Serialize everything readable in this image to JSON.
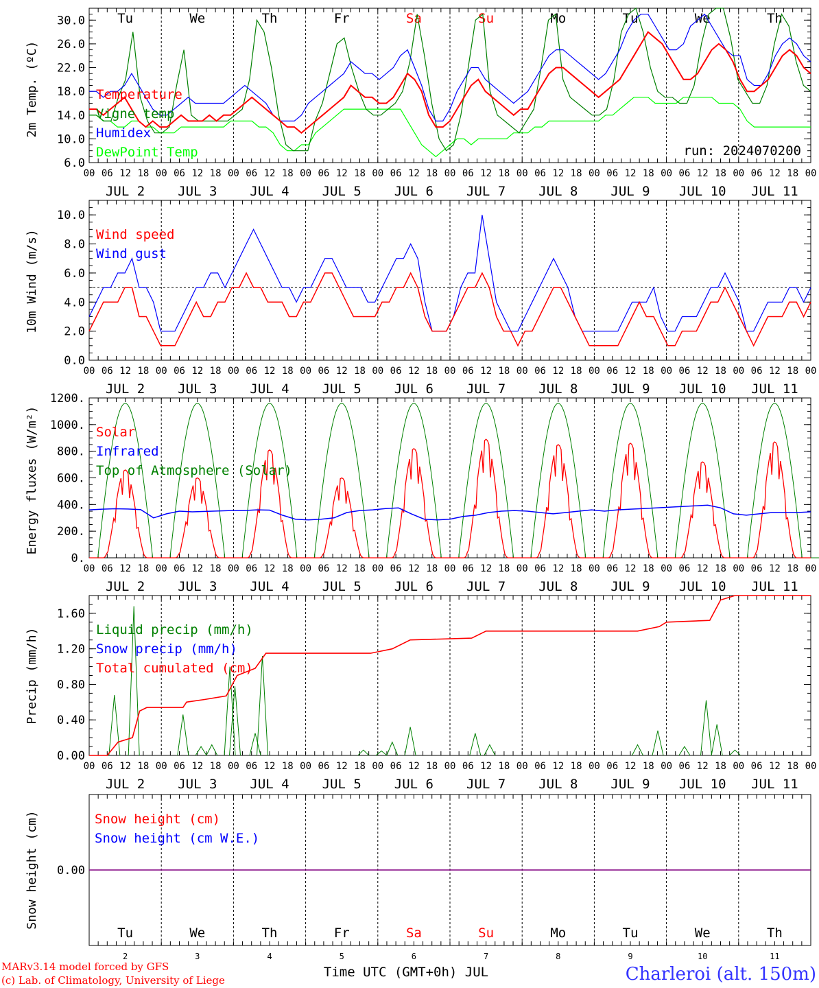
{
  "chart_data": [
    {
      "type": "line",
      "ylabel": "2m Temp. (ºC)",
      "ylim": [
        6,
        32
      ],
      "yticks": [
        "6.0",
        "10.0",
        "14.0",
        "18.0",
        "22.0",
        "26.0",
        "30.0"
      ],
      "run_label": "run: 2024070200",
      "day_names": [
        "Tu",
        "We",
        "Th",
        "Fr",
        "Sa",
        "Su",
        "Mo",
        "Tu",
        "We",
        "Th"
      ],
      "series": [
        {
          "name": "Temperature",
          "color": "#ff0000",
          "values": [
            15,
            15,
            14,
            15,
            16,
            17,
            15,
            13,
            12,
            13,
            12,
            12,
            13,
            14,
            13,
            13,
            13,
            14,
            13,
            14,
            14,
            15,
            16,
            17,
            16,
            15,
            14,
            13,
            12,
            12,
            11,
            12,
            13,
            14,
            15,
            16,
            17,
            19,
            18,
            17,
            17,
            16,
            16,
            17,
            19,
            21,
            20,
            18,
            14,
            12,
            12,
            13,
            15,
            17,
            19,
            20,
            18,
            17,
            16,
            15,
            14,
            15,
            15,
            17,
            19,
            21,
            22,
            22,
            21,
            20,
            19,
            18,
            17,
            18,
            19,
            20,
            22,
            24,
            26,
            28,
            27,
            26,
            24,
            22,
            20,
            20,
            21,
            23,
            25,
            26,
            25,
            23,
            20,
            18,
            18,
            19,
            20,
            22,
            24,
            25,
            24,
            22,
            21
          ]
        },
        {
          "name": "Vigne temp",
          "color": "#008000",
          "values": [
            14,
            14,
            13,
            13,
            17,
            20,
            28,
            17,
            13,
            11,
            11,
            12,
            19,
            25,
            14,
            13,
            13,
            13,
            13,
            13,
            14,
            15,
            20,
            30,
            28,
            22,
            14,
            9,
            8,
            8,
            8,
            13,
            16,
            21,
            26,
            27,
            22,
            18,
            15,
            14,
            14,
            15,
            16,
            18,
            23,
            31,
            24,
            16,
            10,
            8,
            9,
            14,
            22,
            30,
            31,
            18,
            14,
            13,
            12,
            11,
            13,
            15,
            22,
            30,
            31,
            20,
            17,
            16,
            15,
            14,
            14,
            15,
            20,
            28,
            31,
            33,
            28,
            22,
            18,
            17,
            17,
            16,
            16,
            19,
            26,
            31,
            33,
            32,
            27,
            20,
            18,
            16,
            16,
            19,
            26,
            31,
            29,
            23,
            19,
            18
          ]
        },
        {
          "name": "Humidex",
          "color": "#0000ff",
          "values": [
            18,
            18,
            17,
            18,
            18,
            19,
            21,
            19,
            17,
            15,
            14,
            14,
            15,
            16,
            17,
            16,
            16,
            16,
            16,
            16,
            17,
            18,
            19,
            18,
            17,
            16,
            14,
            13,
            13,
            13,
            14,
            16,
            17,
            18,
            19,
            20,
            21,
            23,
            22,
            21,
            21,
            20,
            21,
            22,
            24,
            25,
            22,
            19,
            15,
            13,
            13,
            15,
            18,
            20,
            22,
            22,
            20,
            19,
            18,
            17,
            16,
            17,
            18,
            20,
            22,
            24,
            25,
            25,
            24,
            23,
            22,
            21,
            20,
            21,
            23,
            25,
            28,
            30,
            31,
            31,
            29,
            27,
            25,
            25,
            26,
            29,
            30,
            31,
            29,
            27,
            25,
            24,
            24,
            20,
            19,
            19,
            21,
            24,
            26,
            27,
            26,
            24,
            23
          ]
        },
        {
          "name": "DewPoint Temp",
          "color": "#00ff00",
          "values": [
            14,
            14,
            13,
            13,
            12,
            12,
            13,
            13,
            12,
            12,
            11,
            11,
            11,
            12,
            12,
            12,
            12,
            12,
            12,
            12,
            13,
            13,
            13,
            13,
            12,
            12,
            11,
            9,
            8,
            8,
            9,
            9,
            11,
            12,
            13,
            14,
            15,
            15,
            15,
            15,
            15,
            15,
            15,
            15,
            15,
            13,
            11,
            9,
            8,
            7,
            8,
            9,
            10,
            10,
            9,
            10,
            10,
            10,
            10,
            10,
            11,
            11,
            11,
            12,
            12,
            13,
            13,
            13,
            13,
            13,
            13,
            13,
            13,
            14,
            14,
            15,
            16,
            17,
            17,
            17,
            16,
            16,
            16,
            16,
            17,
            17,
            17,
            17,
            17,
            16,
            16,
            16,
            15,
            13,
            12,
            12,
            12,
            12,
            12,
            12,
            12,
            12,
            12
          ]
        }
      ]
    },
    {
      "type": "line",
      "ylabel": "10m Wind (m/s)",
      "ylim": [
        0,
        11
      ],
      "yticks": [
        "0.0",
        "2.0",
        "4.0",
        "6.0",
        "8.0",
        "10.0"
      ],
      "reference_line": 5,
      "series": [
        {
          "name": "Wind speed",
          "color": "#ff0000",
          "values": [
            2,
            3,
            4,
            4,
            4,
            5,
            5,
            3,
            3,
            2,
            1,
            1,
            1,
            2,
            3,
            4,
            3,
            3,
            4,
            4,
            5,
            5,
            6,
            5,
            5,
            4,
            4,
            4,
            3,
            3,
            4,
            4,
            5,
            6,
            6,
            5,
            4,
            3,
            3,
            3,
            3,
            4,
            4,
            5,
            5,
            6,
            5,
            3,
            2,
            2,
            2,
            3,
            4,
            5,
            5,
            6,
            5,
            3,
            2,
            2,
            1,
            2,
            2,
            3,
            4,
            5,
            5,
            4,
            3,
            2,
            1,
            1,
            1,
            1,
            1,
            2,
            3,
            4,
            3,
            3,
            2,
            1,
            1,
            2,
            2,
            2,
            3,
            4,
            4,
            5,
            4,
            3,
            2,
            1,
            2,
            3,
            3,
            3,
            4,
            4,
            3,
            4
          ]
        },
        {
          "name": "Wind gust",
          "color": "#0000ff",
          "values": [
            3,
            4,
            5,
            5,
            6,
            6,
            7,
            5,
            5,
            4,
            2,
            2,
            2,
            3,
            4,
            5,
            5,
            6,
            6,
            5,
            6,
            7,
            8,
            9,
            8,
            7,
            6,
            5,
            5,
            4,
            5,
            5,
            6,
            7,
            7,
            6,
            5,
            5,
            5,
            4,
            4,
            5,
            6,
            7,
            7,
            8,
            7,
            4,
            2,
            2,
            2,
            3,
            5,
            6,
            6,
            10,
            7,
            4,
            3,
            2,
            2,
            3,
            4,
            5,
            6,
            7,
            6,
            5,
            3,
            2,
            2,
            2,
            2,
            2,
            2,
            3,
            4,
            4,
            4,
            5,
            3,
            2,
            2,
            3,
            3,
            3,
            4,
            5,
            5,
            6,
            5,
            4,
            2,
            2,
            3,
            4,
            4,
            4,
            5,
            5,
            4,
            5
          ]
        }
      ]
    },
    {
      "type": "line",
      "ylabel": "Energy fluxes (W/m²)",
      "ylim": [
        0,
        1200
      ],
      "yticks": [
        "0.",
        "200.",
        "400.",
        "600.",
        "800.",
        "1000.",
        "1200."
      ],
      "series": [
        {
          "name": "Solar",
          "color": "#ff0000",
          "peaks": [
            660,
            600,
            810,
            600,
            820,
            890,
            850,
            860,
            720,
            870
          ]
        },
        {
          "name": "Infrared",
          "color": "#0000ff",
          "values": [
            360,
            365,
            368,
            366,
            362,
            300,
            330,
            350,
            345,
            348,
            352,
            355,
            355,
            360,
            358,
            320,
            290,
            285,
            290,
            300,
            340,
            355,
            360,
            370,
            375,
            330,
            290,
            285,
            290,
            310,
            320,
            340,
            350,
            355,
            350,
            340,
            330,
            340,
            350,
            360,
            350,
            360,
            365,
            370,
            375,
            380,
            385,
            390,
            395,
            375,
            330,
            320,
            330,
            340,
            340,
            340,
            345
          ]
        },
        {
          "name": "Top of Atmosphere (Solar)",
          "color": "#008000",
          "peak": 1160
        }
      ]
    },
    {
      "type": "line",
      "ylabel": "Precip (mm/h)",
      "ylim": [
        0,
        1.8
      ],
      "yticks": [
        "0.00",
        "0.40",
        "0.80",
        "1.20",
        "1.60"
      ],
      "series": [
        {
          "name": "Liquid precip (mm/h)",
          "color": "#008000",
          "events": [
            [
              0.35,
              0.68
            ],
            [
              0.62,
              1.68
            ],
            [
              1.3,
              0.46
            ],
            [
              1.55,
              0.1
            ],
            [
              1.7,
              0.12
            ],
            [
              1.95,
              1.0
            ],
            [
              2.02,
              0.78
            ],
            [
              2.3,
              0.25
            ],
            [
              2.4,
              1.12
            ],
            [
              3.8,
              0.06
            ],
            [
              4.05,
              0.05
            ],
            [
              4.2,
              0.15
            ],
            [
              4.45,
              0.32
            ],
            [
              5.35,
              0.25
            ],
            [
              5.55,
              0.12
            ],
            [
              7.6,
              0.12
            ],
            [
              7.88,
              0.28
            ],
            [
              8.25,
              0.1
            ],
            [
              8.55,
              0.62
            ],
            [
              8.7,
              0.35
            ],
            [
              8.95,
              0.06
            ]
          ]
        },
        {
          "name": "Snow precip (mm/h)",
          "color": "#0000ff",
          "values": []
        },
        {
          "name": "Total cumulated (cm)",
          "color": "#ff0000",
          "values": [
            [
              0,
              0
            ],
            [
              0.25,
              0
            ],
            [
              0.4,
              0.15
            ],
            [
              0.6,
              0.2
            ],
            [
              0.7,
              0.5
            ],
            [
              0.8,
              0.54
            ],
            [
              1.3,
              0.54
            ],
            [
              1.35,
              0.6
            ],
            [
              1.6,
              0.63
            ],
            [
              1.9,
              0.67
            ],
            [
              2.05,
              0.9
            ],
            [
              2.3,
              0.98
            ],
            [
              2.45,
              1.15
            ],
            [
              3.9,
              1.15
            ],
            [
              4.2,
              1.2
            ],
            [
              4.45,
              1.3
            ],
            [
              5.3,
              1.32
            ],
            [
              5.5,
              1.4
            ],
            [
              7.6,
              1.4
            ],
            [
              7.9,
              1.45
            ],
            [
              8.0,
              1.5
            ],
            [
              8.6,
              1.52
            ],
            [
              8.75,
              1.75
            ],
            [
              8.95,
              1.8
            ],
            [
              10,
              1.8
            ]
          ]
        }
      ]
    },
    {
      "type": "line",
      "ylabel": "Snow height (cm)",
      "yticks": [
        "0.00"
      ],
      "series": [
        {
          "name": "Snow height (cm)",
          "color": "#ff0000",
          "values": [
            0,
            0
          ]
        },
        {
          "name": "Snow height (cm W.E.)",
          "color": "#0000ff",
          "values": [
            0,
            0
          ]
        }
      ]
    }
  ],
  "x_axis": {
    "hour_labels": [
      "00",
      "06",
      "12",
      "18"
    ],
    "date_labels": [
      "JUL  2",
      "JUL  3",
      "JUL  4",
      "JUL  5",
      "JUL  6",
      "JUL  7",
      "JUL  8",
      "JUL  9",
      "JUL 10",
      "JUL 11"
    ],
    "bottom_days": [
      "Tu",
      "We",
      "Th",
      "Fr",
      "Sa",
      "Su",
      "Mo",
      "Tu",
      "We",
      "Th"
    ],
    "bottom_day_colors": [
      "#000",
      "#000",
      "#000",
      "#000",
      "#ff0000",
      "#ff0000",
      "#000",
      "#000",
      "#000",
      "#000"
    ],
    "bottom_numbers": [
      "2",
      "3",
      "4",
      "5",
      "6",
      "7",
      "8",
      "9",
      "10",
      "11"
    ],
    "xlabel": "Time UTC (GMT+0h) JUL"
  },
  "footer": {
    "model_line": "MARv3.14 model forced by GFS",
    "credit_line": "(c) Lab. of Climatology, University of Liege",
    "station": "Charleroi (alt. 150m)"
  }
}
